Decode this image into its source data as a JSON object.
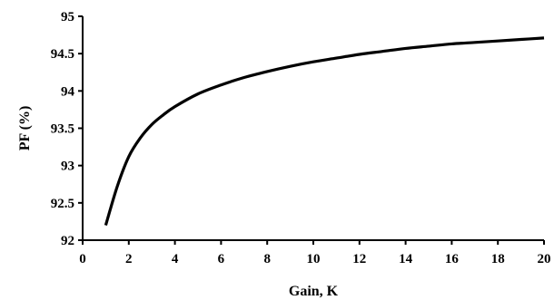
{
  "chart_data": {
    "type": "line",
    "title": "",
    "xlabel": "Gain, K",
    "ylabel": "PF (%)",
    "xlim": [
      0,
      20
    ],
    "ylim": [
      92,
      95
    ],
    "x_ticks": [
      0,
      2,
      4,
      6,
      8,
      10,
      12,
      14,
      16,
      18,
      20
    ],
    "y_ticks": [
      92,
      92.5,
      93,
      93.5,
      94,
      94.5,
      95
    ],
    "grid": false,
    "legend": "none",
    "series": [
      {
        "color": "#000000",
        "x": [
          1,
          1.5,
          2,
          2.5,
          3,
          3.5,
          4,
          5,
          6,
          7,
          8,
          9,
          10,
          11,
          12,
          13,
          14,
          15,
          16,
          17,
          18,
          19,
          20
        ],
        "y": [
          92.2,
          92.72,
          93.12,
          93.37,
          93.55,
          93.68,
          93.79,
          93.96,
          94.08,
          94.18,
          94.26,
          94.33,
          94.39,
          94.44,
          94.49,
          94.53,
          94.57,
          94.6,
          94.63,
          94.65,
          94.67,
          94.69,
          94.71
        ]
      }
    ]
  }
}
